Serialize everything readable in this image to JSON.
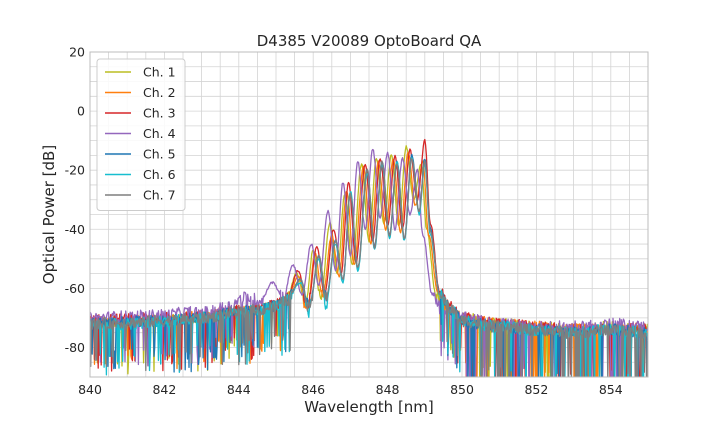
{
  "chart_data": {
    "type": "line",
    "title": "D4385 V20089 OptoBoard QA",
    "xlabel": "Wavelength [nm]",
    "ylabel": "Optical Power [dB]",
    "xlim": [
      840,
      855
    ],
    "ylim": [
      -90,
      20
    ],
    "x_ticks": [
      840,
      842,
      844,
      846,
      848,
      850,
      852,
      854
    ],
    "y_ticks": [
      -80,
      -60,
      -40,
      -20,
      0,
      20
    ],
    "x_minor_step": 0.5,
    "y_minor_step": 5,
    "grid": true,
    "legend_position": "top-left",
    "series": [
      {
        "name": "Ch. 1",
        "color": "#bcbd22",
        "x": [
          840,
          841,
          842,
          843,
          844,
          844.6,
          845.0,
          845.3,
          845.55,
          845.8,
          846.0,
          846.2,
          846.45,
          846.65,
          846.85,
          847.05,
          847.3,
          847.5,
          847.7,
          847.9,
          848.1,
          848.3,
          848.5,
          848.7,
          848.9,
          849.05,
          849.3,
          849.6,
          850.0,
          851,
          852,
          853,
          854,
          855
        ],
        "y": [
          -72,
          -71.5,
          -71,
          -70,
          -68,
          -67,
          -66,
          -63,
          -55,
          -65,
          -47,
          -64,
          -38,
          -55,
          -28,
          -52,
          -18,
          -44,
          -16,
          -38,
          -15,
          -39,
          -12,
          -30,
          -18,
          -40,
          -62,
          -66,
          -70,
          -72,
          -73,
          -74,
          -73,
          -74
        ]
      },
      {
        "name": "Ch. 2",
        "color": "#ff7f0e",
        "x": [
          840,
          841,
          842,
          843,
          844,
          844.6,
          845.0,
          845.3,
          845.6,
          845.85,
          846.05,
          846.25,
          846.5,
          846.7,
          846.9,
          847.1,
          847.35,
          847.55,
          847.75,
          847.95,
          848.15,
          848.35,
          848.55,
          848.75,
          848.95,
          849.1,
          849.35,
          849.6,
          850.0,
          851,
          852,
          853,
          854,
          855
        ],
        "y": [
          -71,
          -71,
          -70.5,
          -69.5,
          -68,
          -67,
          -66,
          -64,
          -56,
          -66,
          -48,
          -63,
          -42,
          -56,
          -27,
          -52,
          -19,
          -45,
          -17,
          -40,
          -16,
          -41,
          -14,
          -32,
          -17,
          -42,
          -61,
          -66,
          -70,
          -72,
          -73,
          -74,
          -74,
          -74
        ]
      },
      {
        "name": "Ch. 3",
        "color": "#d62728",
        "x": [
          840,
          841,
          842,
          843,
          844,
          844.6,
          845.0,
          845.3,
          845.6,
          845.85,
          846.1,
          846.3,
          846.55,
          846.75,
          846.95,
          847.15,
          847.4,
          847.6,
          847.8,
          848.0,
          848.2,
          848.4,
          848.6,
          848.8,
          849.0,
          849.15,
          849.4,
          849.65,
          850.0,
          851,
          852,
          853,
          854,
          855
        ],
        "y": [
          -71,
          -70.5,
          -70,
          -69,
          -67.5,
          -66.5,
          -65.5,
          -63,
          -54,
          -66,
          -46,
          -62,
          -40,
          -55,
          -24,
          -51,
          -18,
          -44,
          -16,
          -39,
          -15,
          -40,
          -13,
          -30,
          -10,
          -38,
          -61,
          -66,
          -70,
          -72,
          -73,
          -74,
          -73,
          -74
        ]
      },
      {
        "name": "Ch. 4",
        "color": "#9467bd",
        "x": [
          840,
          841,
          842,
          842.7,
          843.2,
          843.7,
          844.2,
          844.6,
          844.9,
          845.2,
          845.45,
          845.7,
          845.95,
          846.15,
          846.4,
          846.6,
          846.8,
          847.0,
          847.2,
          847.4,
          847.6,
          847.8,
          848.0,
          848.2,
          848.4,
          848.6,
          848.8,
          848.95,
          849.2,
          849.5,
          850.0,
          851,
          852,
          853,
          854,
          855
        ],
        "y": [
          -70,
          -69.5,
          -69,
          -68,
          -68,
          -66,
          -63,
          -64,
          -58,
          -63,
          -52,
          -62,
          -45,
          -59,
          -34,
          -54,
          -24,
          -49,
          -17,
          -40,
          -13,
          -36,
          -14,
          -40,
          -16,
          -35,
          -20,
          -42,
          -62,
          -67,
          -70,
          -72,
          -73,
          -73,
          -72,
          -73
        ]
      },
      {
        "name": "Ch. 5",
        "color": "#1f77b4",
        "x": [
          840,
          841,
          842,
          843,
          844,
          844.6,
          845.0,
          845.3,
          845.65,
          845.9,
          846.15,
          846.35,
          846.6,
          846.8,
          847.0,
          847.2,
          847.45,
          847.65,
          847.85,
          848.05,
          848.25,
          848.45,
          848.65,
          848.85,
          849.0,
          849.15,
          849.4,
          849.7,
          850.0,
          851,
          852,
          853,
          854,
          855
        ],
        "y": [
          -72,
          -71.5,
          -71,
          -70,
          -68,
          -67,
          -66,
          -64,
          -57,
          -66,
          -49,
          -63,
          -44,
          -57,
          -28,
          -53,
          -20,
          -46,
          -17,
          -42,
          -17,
          -43,
          -15,
          -34,
          -16,
          -40,
          -62,
          -67,
          -71,
          -73,
          -74,
          -75,
          -74,
          -75
        ]
      },
      {
        "name": "Ch. 6",
        "color": "#17becf",
        "x": [
          840,
          841,
          842,
          843,
          844,
          844.6,
          845.0,
          845.3,
          845.65,
          845.9,
          846.15,
          846.35,
          846.6,
          846.8,
          847.0,
          847.2,
          847.45,
          847.65,
          847.85,
          848.05,
          848.25,
          848.45,
          848.65,
          848.85,
          849.0,
          849.15,
          849.4,
          849.7,
          850.0,
          851,
          852,
          853,
          854,
          855
        ],
        "y": [
          -72,
          -72,
          -71,
          -70,
          -68.5,
          -67,
          -66,
          -64,
          -58,
          -66,
          -50,
          -64,
          -45,
          -58,
          -27,
          -54,
          -21,
          -47,
          -18,
          -43,
          -17,
          -44,
          -16,
          -35,
          -18,
          -42,
          -62,
          -67,
          -71,
          -73,
          -74,
          -75,
          -74,
          -75
        ]
      },
      {
        "name": "Ch. 7",
        "color": "#7f7f7f",
        "x": [
          840,
          841,
          842,
          843,
          844,
          844.6,
          845.0,
          845.3,
          845.65,
          845.9,
          846.15,
          846.35,
          846.6,
          846.8,
          847.0,
          847.2,
          847.45,
          847.65,
          847.85,
          848.05,
          848.25,
          848.45,
          848.65,
          848.85,
          849.0,
          849.15,
          849.4,
          849.7,
          850.0,
          851,
          852,
          853,
          854,
          855
        ],
        "y": [
          -72,
          -71.5,
          -71,
          -70,
          -68,
          -67,
          -66,
          -64,
          -57,
          -66,
          -49,
          -63,
          -44,
          -57,
          -28,
          -53,
          -20,
          -46,
          -17,
          -42,
          -18,
          -43,
          -16,
          -34,
          -17,
          -41,
          -62,
          -67,
          -71,
          -73,
          -74,
          -75,
          -74,
          -75
        ]
      }
    ]
  }
}
